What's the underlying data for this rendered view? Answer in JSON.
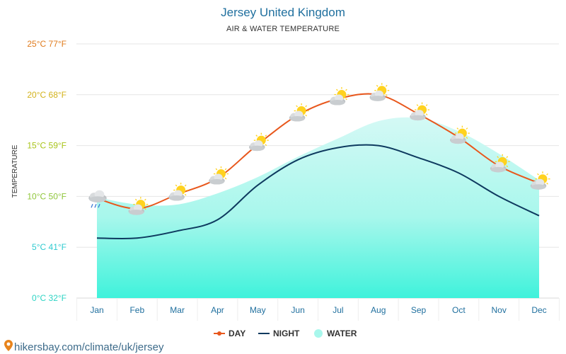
{
  "header": {
    "title": "Jersey United Kingdom",
    "subtitle": "AIR & WATER TEMPERATURE"
  },
  "footer": {
    "url": "hikersbay.com/climate/uk/jersey"
  },
  "colors": {
    "day": "#e8571c",
    "night": "#0e3a5f",
    "water": "#a8f7ec",
    "water_top": "#c8f7f3",
    "water_bottom": "#3ff2db",
    "title": "#1f6f9e"
  },
  "chart_data": {
    "type": "line",
    "title": "Jersey United Kingdom",
    "subtitle": "AIR & WATER TEMPERATURE",
    "ylabel": "TEMPERATURE",
    "xlabel": "",
    "ylim": [
      0,
      25
    ],
    "yticks": [
      {
        "value": 0,
        "label": "0°C 32°F",
        "color": "#2dd4c4"
      },
      {
        "value": 5,
        "label": "5°C 41°F",
        "color": "#2fcbd0"
      },
      {
        "value": 10,
        "label": "10°C 50°F",
        "color": "#8fc63a"
      },
      {
        "value": 15,
        "label": "15°C 59°F",
        "color": "#a9c41b"
      },
      {
        "value": 20,
        "label": "20°C 68°F",
        "color": "#d3b21a"
      },
      {
        "value": 25,
        "label": "25°C 77°F",
        "color": "#e07b1d"
      }
    ],
    "categories": [
      "Jan",
      "Feb",
      "Mar",
      "Apr",
      "May",
      "Jun",
      "Jul",
      "Aug",
      "Sep",
      "Oct",
      "Nov",
      "Dec"
    ],
    "series": [
      {
        "name": "DAY",
        "kind": "line-markers",
        "values": [
          9.8,
          8.8,
          10.2,
          11.8,
          15.1,
          18.0,
          19.6,
          20.0,
          18.1,
          15.8,
          13.0,
          11.3
        ]
      },
      {
        "name": "NIGHT",
        "kind": "line",
        "values": [
          5.9,
          5.9,
          6.6,
          7.7,
          11.1,
          13.6,
          14.8,
          15.0,
          13.8,
          12.3,
          10.0,
          8.1
        ]
      },
      {
        "name": "WATER",
        "kind": "area",
        "values": [
          9.9,
          9.2,
          9.2,
          10.3,
          11.9,
          13.9,
          15.7,
          17.4,
          17.7,
          16.4,
          14.2,
          11.6
        ]
      }
    ],
    "weather_icons": [
      "cloud-rain-icon",
      "sun-cloud-icon",
      "sun-cloud-icon",
      "sun-cloud-icon",
      "sun-cloud-icon",
      "sun-cloud-icon",
      "sun-cloud-icon",
      "sun-cloud-icon",
      "sun-cloud-icon",
      "sun-cloud-icon",
      "sun-cloud-icon",
      "sun-cloud-icon"
    ],
    "legend": {
      "position": "bottom-center",
      "items": [
        {
          "label": "DAY",
          "symbol": "line-dot"
        },
        {
          "label": "NIGHT",
          "symbol": "line"
        },
        {
          "label": "WATER",
          "symbol": "circle"
        }
      ]
    },
    "grid": true
  }
}
